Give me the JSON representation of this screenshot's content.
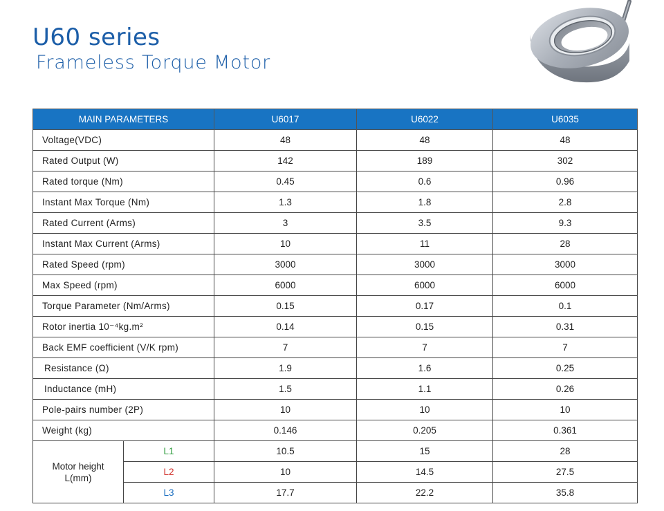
{
  "header": {
    "title": "U60 series",
    "subtitle": "Frameless Torque Motor"
  },
  "table": {
    "columns": [
      "MAIN PARAMETERS",
      "U6017",
      "U6022",
      "U6035"
    ],
    "rows": [
      {
        "label": "Voltage(VDC)",
        "values": [
          "48",
          "48",
          "48"
        ]
      },
      {
        "label": "Rated Output (W)",
        "values": [
          "142",
          "189",
          "302"
        ]
      },
      {
        "label": "Rated torque (Nm)",
        "values": [
          "0.45",
          "0.6",
          "0.96"
        ]
      },
      {
        "label": "Instant Max Torque (Nm)",
        "values": [
          "1.3",
          "1.8",
          "2.8"
        ]
      },
      {
        "label": "Rated Current (Arms)",
        "values": [
          "3",
          "3.5",
          "9.3"
        ]
      },
      {
        "label": "Instant Max Current (Arms)",
        "values": [
          "10",
          "11",
          "28"
        ]
      },
      {
        "label": "Rated Speed (rpm)",
        "values": [
          "3000",
          "3000",
          "3000"
        ]
      },
      {
        "label": "Max  Speed (rpm)",
        "values": [
          "6000",
          "6000",
          "6000"
        ]
      },
      {
        "label": "Torque Parameter (Nm/Arms)",
        "values": [
          "0.15",
          "0.17",
          "0.1"
        ]
      },
      {
        "label": "Rotor inertia 10⁻⁴kg.m²",
        "values": [
          "0.14",
          "0.15",
          "0.31"
        ]
      },
      {
        "label": "Back EMF coefficient (V/K rpm)",
        "values": [
          "7",
          "7",
          "7"
        ]
      },
      {
        "label": "Resistance (Ω)",
        "values": [
          "1.9",
          "1.6",
          "0.25"
        ]
      },
      {
        "label": "Inductance (mH)",
        "values": [
          "1.5",
          "1.1",
          "0.26"
        ]
      },
      {
        "label": "Pole-pairs number (2P)",
        "values": [
          "10",
          "10",
          "10"
        ]
      },
      {
        "label": "Weight (kg)",
        "values": [
          "0.146",
          "0.205",
          "0.361"
        ]
      }
    ],
    "motor_height": {
      "label_line1": "Motor height",
      "label_line2": "L(mm)",
      "rows": [
        {
          "label": "L1",
          "values": [
            "10.5",
            "15",
            "28"
          ]
        },
        {
          "label": "L2",
          "values": [
            "10",
            "14.5",
            "27.5"
          ]
        },
        {
          "label": "L3",
          "values": [
            "17.7",
            "22.2",
            "35.8"
          ]
        }
      ]
    }
  },
  "colors": {
    "title": "#1c5ea8",
    "header_bg": "#1874c3",
    "l1": "#2a9a3a",
    "l2": "#d0302a",
    "l3": "#1c6fc0"
  }
}
